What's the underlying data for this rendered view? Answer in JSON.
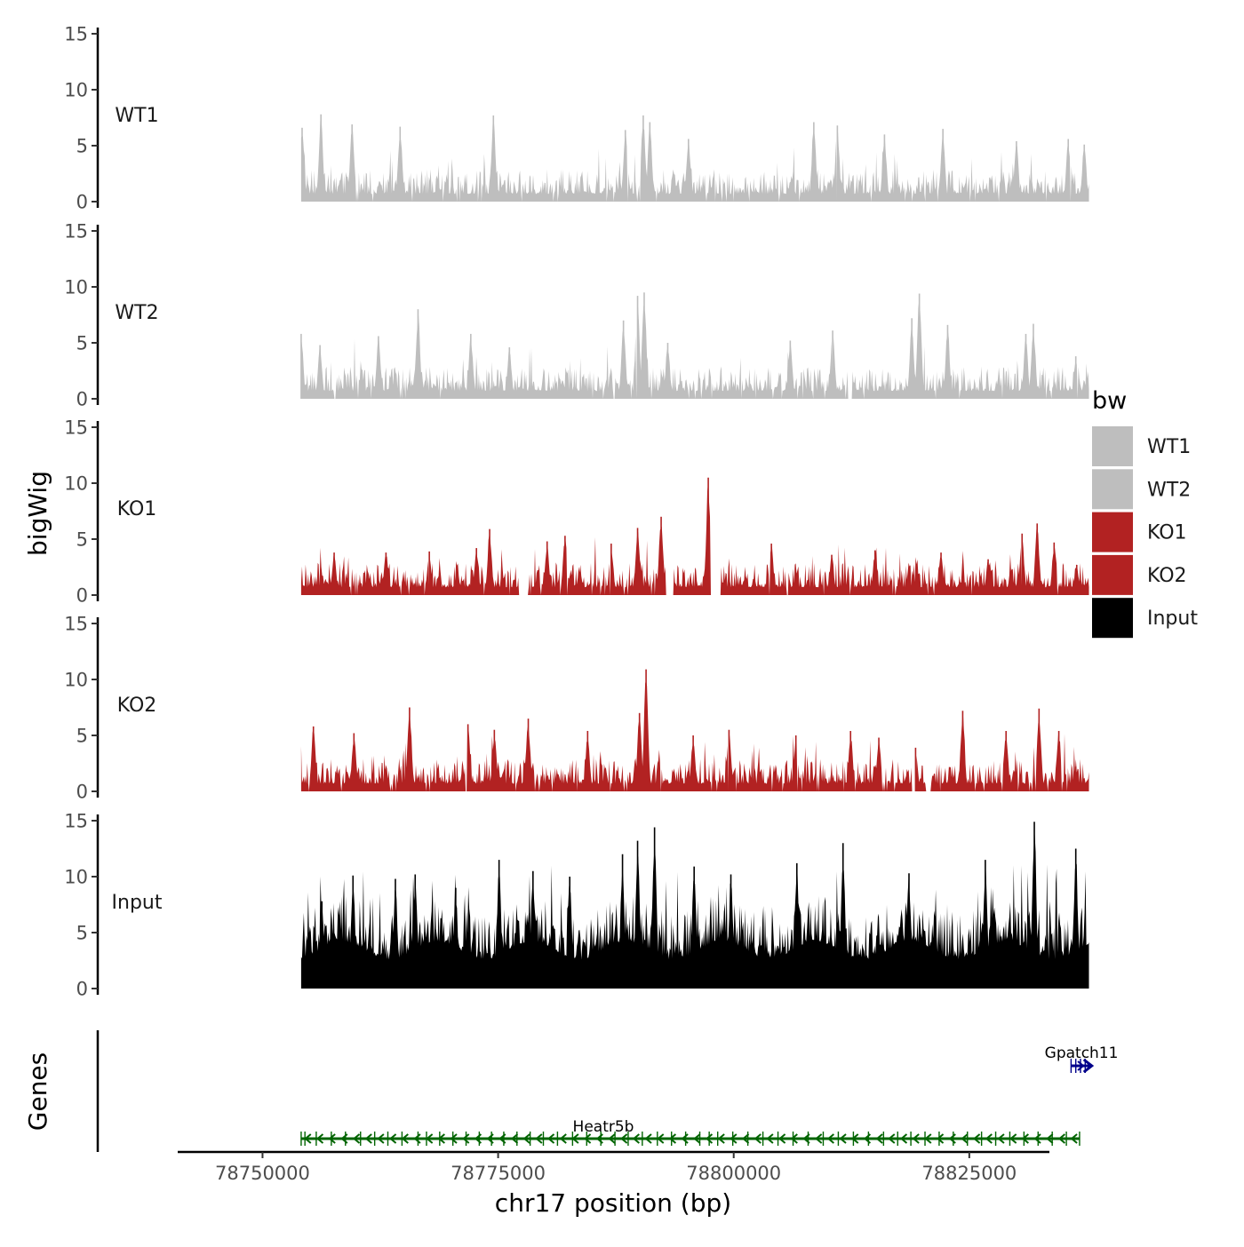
{
  "chart_data": {
    "type": "area",
    "chromosome": "chr17",
    "xlabel": "chr17 position (bp)",
    "ylabel": "bigWig",
    "genes_axis_label": "Genes",
    "xlim": [
      78741000,
      78833500
    ],
    "x_ticks": [
      78750000,
      78775000,
      78800000,
      78825000
    ],
    "x_tick_labels": [
      "78750000",
      "78775000",
      "78800000",
      "78825000"
    ],
    "ylim": [
      0,
      15
    ],
    "y_ticks": [
      0,
      5,
      10,
      15
    ],
    "y_tick_labels": [
      "0",
      "5",
      "10",
      "15"
    ],
    "signal_range": [
      78754100,
      78837700
    ],
    "tracks": [
      {
        "name": "WT1",
        "color": "#bebebe",
        "peaks": [
          [
            78754200,
            6.6
          ],
          [
            78756200,
            7.8
          ],
          [
            78759500,
            6.9
          ],
          [
            78764600,
            6.7
          ],
          [
            78774500,
            7.7
          ],
          [
            78788500,
            6.4
          ],
          [
            78790400,
            7.7
          ],
          [
            78791100,
            7.1
          ],
          [
            78795200,
            5.6
          ],
          [
            78808500,
            7.1
          ],
          [
            78811000,
            6.8
          ],
          [
            78816000,
            6.0
          ],
          [
            78822200,
            6.5
          ],
          [
            78830000,
            5.4
          ],
          [
            78835500,
            5.6
          ],
          [
            78837200,
            5.1
          ]
        ],
        "gaps": []
      },
      {
        "name": "WT2",
        "color": "#bebebe",
        "peaks": [
          [
            78754100,
            5.8
          ],
          [
            78756100,
            4.8
          ],
          [
            78762300,
            5.6
          ],
          [
            78766500,
            8.0
          ],
          [
            78772100,
            5.8
          ],
          [
            78776200,
            4.6
          ],
          [
            78788300,
            7.0
          ],
          [
            78789800,
            9.2
          ],
          [
            78790500,
            9.5
          ],
          [
            78793000,
            5.0
          ],
          [
            78806000,
            5.2
          ],
          [
            78810500,
            6.1
          ],
          [
            78818900,
            7.2
          ],
          [
            78819700,
            9.4
          ],
          [
            78822700,
            6.6
          ],
          [
            78831000,
            5.8
          ],
          [
            78831800,
            6.7
          ],
          [
            78836300,
            3.8
          ]
        ],
        "gaps": [
          [
            78812100,
            78812600
          ]
        ]
      },
      {
        "name": "KO1",
        "color": "#b22222",
        "peaks": [
          [
            78757600,
            3.8
          ],
          [
            78763100,
            3.8
          ],
          [
            78767700,
            3.9
          ],
          [
            78772700,
            4.2
          ],
          [
            78774100,
            5.9
          ],
          [
            78780200,
            4.8
          ],
          [
            78782100,
            5.3
          ],
          [
            78787000,
            4.6
          ],
          [
            78789800,
            6.0
          ],
          [
            78792300,
            7.0
          ],
          [
            78797300,
            10.5
          ],
          [
            78804000,
            4.6
          ],
          [
            78810400,
            3.6
          ],
          [
            78815000,
            4.0
          ],
          [
            78822000,
            3.8
          ],
          [
            78827000,
            3.2
          ],
          [
            78830600,
            5.5
          ],
          [
            78832200,
            6.4
          ],
          [
            78834000,
            4.7
          ],
          [
            78836400,
            2.7
          ]
        ],
        "gaps": [
          [
            78777200,
            78778200
          ],
          [
            78792800,
            78793600
          ],
          [
            78797500,
            78798600
          ]
        ]
      },
      {
        "name": "KO2",
        "color": "#b22222",
        "peaks": [
          [
            78755400,
            5.8
          ],
          [
            78759700,
            5.2
          ],
          [
            78765600,
            7.5
          ],
          [
            78771800,
            6.0
          ],
          [
            78774600,
            5.5
          ],
          [
            78778200,
            6.5
          ],
          [
            78784500,
            5.4
          ],
          [
            78790000,
            7.0
          ],
          [
            78790700,
            10.9
          ],
          [
            78795700,
            5.0
          ],
          [
            78799500,
            5.5
          ],
          [
            78806600,
            5.0
          ],
          [
            78812400,
            5.4
          ],
          [
            78815400,
            4.8
          ],
          [
            78819300,
            3.9
          ],
          [
            78824300,
            7.2
          ],
          [
            78828900,
            5.4
          ],
          [
            78832400,
            7.4
          ],
          [
            78834500,
            5.4
          ],
          [
            78836300,
            2.2
          ]
        ],
        "gaps": [
          [
            78818900,
            78819400
          ],
          [
            78820400,
            78820900
          ]
        ]
      },
      {
        "name": "Input",
        "color": "#000000",
        "peaks": [
          [
            78754200,
            2.4
          ],
          [
            78756300,
            7.8
          ],
          [
            78759600,
            10.1
          ],
          [
            78764100,
            9.8
          ],
          [
            78766200,
            10.2
          ],
          [
            78770500,
            9.0
          ],
          [
            78775100,
            11.5
          ],
          [
            78778700,
            10.5
          ],
          [
            78782600,
            10.0
          ],
          [
            78788200,
            12.0
          ],
          [
            78789800,
            13.2
          ],
          [
            78791600,
            14.4
          ],
          [
            78795800,
            10.9
          ],
          [
            78799700,
            10.2
          ],
          [
            78806700,
            11.2
          ],
          [
            78811600,
            13.0
          ],
          [
            78818600,
            10.3
          ],
          [
            78826700,
            11.5
          ],
          [
            78831900,
            14.9
          ],
          [
            78836300,
            12.5
          ]
        ],
        "gaps": []
      }
    ],
    "legend": {
      "title": "bw",
      "position": "right",
      "entries": [
        {
          "label": "WT1",
          "color": "#bebebe"
        },
        {
          "label": "WT2",
          "color": "#bebebe"
        },
        {
          "label": "KO1",
          "color": "#b22222"
        },
        {
          "label": "KO2",
          "color": "#b22222"
        },
        {
          "label": "Input",
          "color": "#000000"
        }
      ]
    },
    "genes": [
      {
        "name": "Heatr5b",
        "color": "#006400",
        "start": 78754100,
        "end": 78836700,
        "strand": "-",
        "exons": [
          78754100,
          78754500,
          78755700,
          78757300,
          78758800,
          78760400,
          78761900,
          78763300,
          78764800,
          78766500,
          78767400,
          78768800,
          78770200,
          78771600,
          78773000,
          78774300,
          78775600,
          78777000,
          78778400,
          78779800,
          78781300,
          78782900,
          78784400,
          78785900,
          78787400,
          78788800,
          78790300,
          78791900,
          78793400,
          78794900,
          78796400,
          78797400,
          78798300,
          78799900,
          78801500,
          78803100,
          78804700,
          78806300,
          78807900,
          78809500,
          78811100,
          78812700,
          78814300,
          78815900,
          78817400,
          78818800,
          78820300,
          78821800,
          78823300,
          78824800,
          78826300,
          78827800,
          78829300,
          78830800,
          78832300,
          78833800,
          78835300,
          78836700
        ]
      },
      {
        "name": "Gpatch11",
        "color": "#00008b",
        "start": 78835800,
        "end": 78838000,
        "strand": "+",
        "exons": [
          78835800,
          78836300,
          78836800,
          78837300
        ]
      }
    ]
  }
}
